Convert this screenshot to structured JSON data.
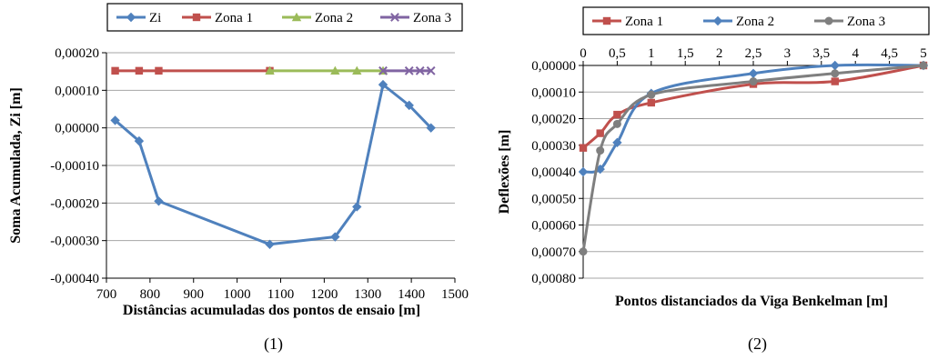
{
  "figure_labels": [
    "(1)",
    "(2)"
  ],
  "chart_data": [
    {
      "type": "line",
      "title": "",
      "xlabel": "Distâncias acumuladas dos pontos de ensaio [m]",
      "ylabel": "Soma Acumulada, Zi [m]",
      "xlim": [
        700,
        1500
      ],
      "ylim": [
        -0.0004,
        0.0002
      ],
      "x_ticks": [
        700,
        800,
        900,
        1000,
        1100,
        1200,
        1300,
        1400,
        1500
      ],
      "x_tick_labels": [
        "700",
        "800",
        "900",
        "1000",
        "1100",
        "1200",
        "1300",
        "1400",
        "1500"
      ],
      "y_ticks": [
        0.0002,
        0.0001,
        0.0,
        -0.0001,
        -0.0002,
        -0.0003,
        -0.0004
      ],
      "y_tick_labels": [
        "0,00020",
        "0,00010",
        "0,00000",
        "-0,00010",
        "-0,00020",
        "-0,00030",
        "-0,00040"
      ],
      "grid": "horizontal",
      "legend_position": "top",
      "series": [
        {
          "name": "Zi",
          "color": "#4F81BD",
          "marker": "diamond",
          "x": [
            720,
            775,
            820,
            1075,
            1225,
            1275,
            1335,
            1395,
            1445
          ],
          "y": [
            2e-05,
            -3.5e-05,
            -0.000195,
            -0.00031,
            -0.00029,
            -0.00021,
            0.000115,
            6e-05,
            0.0
          ]
        },
        {
          "name": "Zona 1",
          "color": "#C0504D",
          "marker": "square",
          "x": [
            720,
            775,
            820,
            1075
          ],
          "y": [
            0.000152,
            0.000152,
            0.000152,
            0.000152
          ]
        },
        {
          "name": "Zona 2",
          "color": "#9BBB59",
          "marker": "triangle",
          "x": [
            1075,
            1225,
            1275,
            1335
          ],
          "y": [
            0.000152,
            0.000152,
            0.000152,
            0.000152
          ]
        },
        {
          "name": "Zona 3",
          "color": "#8064A2",
          "marker": "x",
          "x": [
            1335,
            1395,
            1420,
            1445
          ],
          "y": [
            0.000152,
            0.000152,
            0.000152,
            0.000152
          ]
        }
      ]
    },
    {
      "type": "line",
      "title": "",
      "xlabel": "Pontos  distanciados da Viga Benkelman [m]",
      "ylabel": "Deflexões [m]",
      "xlim": [
        0,
        5
      ],
      "ylim": [
        0.0,
        0.0008
      ],
      "y_reversed": true,
      "x_axis_position": "top",
      "x_ticks": [
        0,
        0.5,
        1,
        1.5,
        2,
        2.5,
        3,
        3.5,
        4,
        4.5,
        5
      ],
      "x_tick_labels": [
        "0",
        "0,5",
        "1",
        "1,5",
        "2",
        "2,5",
        "3",
        "3,5",
        "4",
        "4,5",
        "5"
      ],
      "y_ticks": [
        0.0,
        0.0001,
        0.0002,
        0.0003,
        0.0004,
        0.0005,
        0.0006,
        0.0007,
        0.0008
      ],
      "y_tick_labels": [
        "0,00000",
        "0,00010",
        "0,00020",
        "0,00030",
        "0,00040",
        "0,00050",
        "0,00060",
        "0,00070",
        "0,00080"
      ],
      "grid": "horizontal",
      "legend_position": "top",
      "series": [
        {
          "name": "Zona 1",
          "color": "#C0504D",
          "marker": "square",
          "x": [
            0,
            0.25,
            0.5,
            1,
            2.5,
            3.7,
            5
          ],
          "y": [
            0.00031,
            0.000255,
            0.000185,
            0.00014,
            7e-05,
            6e-05,
            0.0
          ]
        },
        {
          "name": "Zona 2",
          "color": "#4F81BD",
          "marker": "diamond",
          "x": [
            0,
            0.25,
            0.5,
            1,
            2.5,
            3.7,
            5
          ],
          "y": [
            0.0004,
            0.00039,
            0.00029,
            0.000105,
            3e-05,
            0.0,
            0.0
          ]
        },
        {
          "name": "Zona 3",
          "color": "#7F7F7F",
          "marker": "circle",
          "x": [
            0,
            0.25,
            0.5,
            1,
            2.5,
            3.7,
            5
          ],
          "y": [
            0.0007,
            0.00032,
            0.00022,
            0.00011,
            6e-05,
            3e-05,
            0.0
          ]
        }
      ]
    }
  ]
}
